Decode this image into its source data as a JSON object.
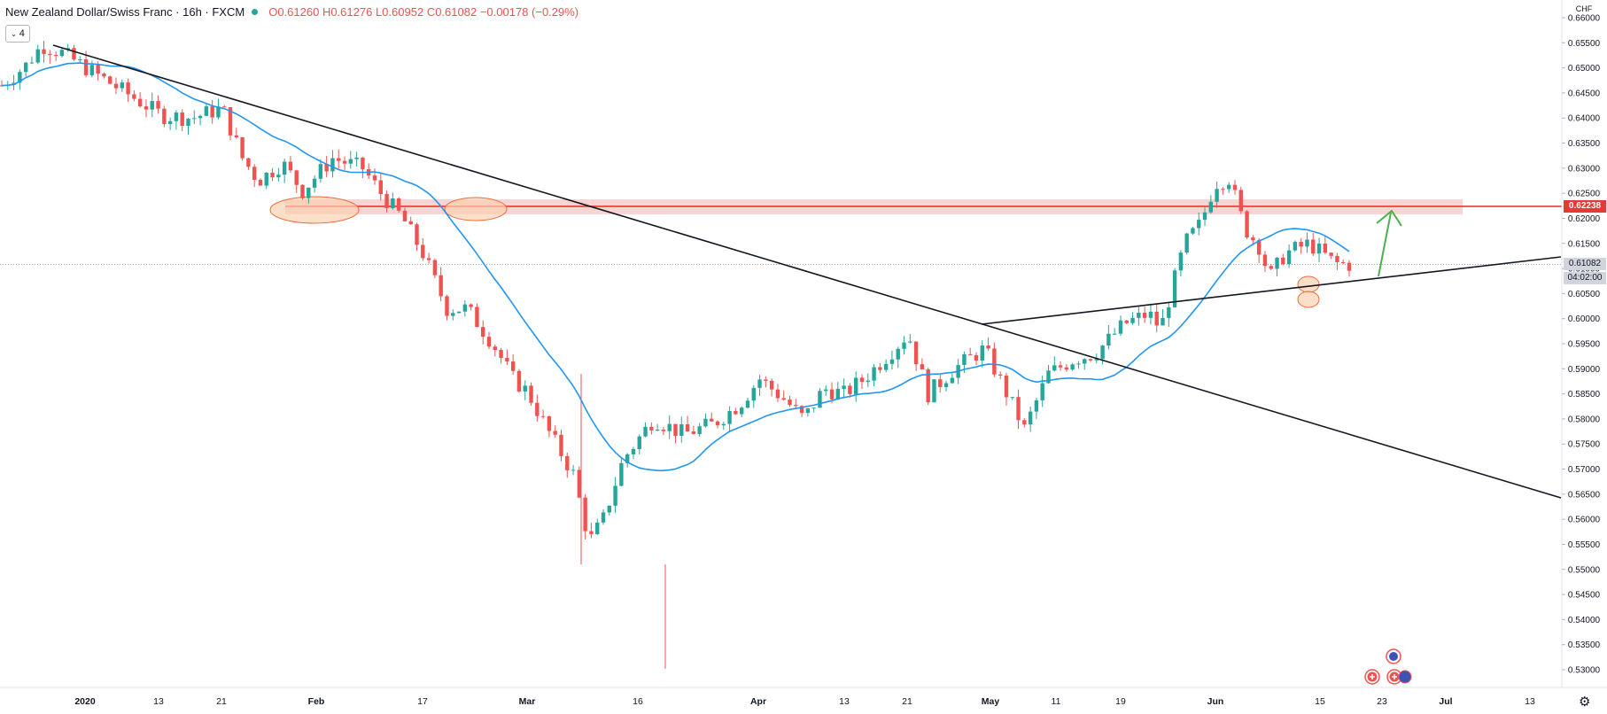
{
  "header": {
    "symbol": "New Zealand Dollar/Swiss Franc · 16h · FXCM",
    "ohlc": {
      "o": "O0.61260",
      "h": "H0.61276",
      "l": "L0.60952",
      "c": "C0.61082",
      "chg": "−0.00178 (−0.29%)"
    },
    "indicator_badge": "4"
  },
  "axis": {
    "currency": "CHF",
    "current_price": "0.61082",
    "countdown": "04:02:00",
    "resistance_label": "0.62238"
  },
  "chart_data": {
    "type": "candlestick",
    "ylim": [
      0.5275,
      0.663
    ],
    "y_ticks": [
      "0.66000",
      "0.65500",
      "0.65000",
      "0.64500",
      "0.64000",
      "0.63500",
      "0.63000",
      "0.62500",
      "0.62000",
      "0.61500",
      "0.61000",
      "0.60500",
      "0.60000",
      "0.59500",
      "0.59000",
      "0.58500",
      "0.58000",
      "0.57500",
      "0.57000",
      "0.56500",
      "0.56000",
      "0.55500",
      "0.55000",
      "0.54500",
      "0.54000",
      "0.53500",
      "0.53000"
    ],
    "x_ticks": [
      "2020",
      "13",
      "21",
      "Feb",
      "17",
      "Mar",
      "16",
      "Apr",
      "13",
      "21",
      "May",
      "11",
      "19",
      "Jun",
      "15",
      "23",
      "Jul",
      "13"
    ],
    "resistance": 0.62238,
    "ma_color": "#2196f3",
    "up_color": "#26a69a",
    "down_color": "#ef5350"
  },
  "colors": {
    "zone": "#f5b5b5",
    "resistance_line": "#e53935",
    "ellipse": "#f8c8a0",
    "arrow": "#4caf50"
  }
}
